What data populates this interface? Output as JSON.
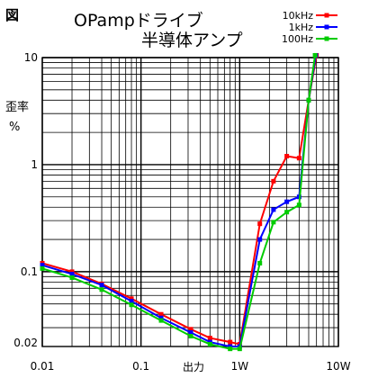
{
  "figure_label": "図",
  "title_line1": "OPampドライブ",
  "title_line2": "半導体アンプ",
  "chart_data": {
    "type": "line",
    "title": "OPampドライブ 半導体アンプ",
    "ylabel_line1": "歪率",
    "ylabel_line2": "%",
    "xlabel": "出力",
    "x_scale": "log",
    "y_scale": "log",
    "xlim": [
      0.01,
      10
    ],
    "ylim": [
      0.02,
      10
    ],
    "grid": true,
    "legend_position": "top-right",
    "x_ticks": [
      {
        "value": 0.01,
        "label": "0.01"
      },
      {
        "value": 0.1,
        "label": "0.1"
      },
      {
        "value": 1,
        "label": "1W"
      },
      {
        "value": 10,
        "label": "10W"
      }
    ],
    "y_ticks": [
      {
        "value": 0.02,
        "label": "0.02"
      },
      {
        "value": 0.1,
        "label": "0.1"
      },
      {
        "value": 1,
        "label": "1"
      },
      {
        "value": 10,
        "label": "10"
      }
    ],
    "series": [
      {
        "name": "10kHz",
        "color": "#ff0000",
        "points": [
          [
            0.01,
            0.12
          ],
          [
            0.02,
            0.1
          ],
          [
            0.04,
            0.077
          ],
          [
            0.08,
            0.056
          ],
          [
            0.16,
            0.04
          ],
          [
            0.32,
            0.029
          ],
          [
            0.5,
            0.024
          ],
          [
            0.8,
            0.022
          ],
          [
            1.0,
            0.021
          ],
          [
            1.6,
            0.28
          ],
          [
            2.2,
            0.7
          ],
          [
            3.0,
            1.2
          ],
          [
            4.0,
            1.15
          ],
          [
            5.0,
            4.0
          ],
          [
            6.0,
            10.5
          ]
        ]
      },
      {
        "name": "1kHz",
        "color": "#0000ff",
        "points": [
          [
            0.01,
            0.115
          ],
          [
            0.02,
            0.095
          ],
          [
            0.04,
            0.075
          ],
          [
            0.08,
            0.053
          ],
          [
            0.16,
            0.037
          ],
          [
            0.32,
            0.027
          ],
          [
            0.5,
            0.022
          ],
          [
            0.8,
            0.02
          ],
          [
            1.0,
            0.02
          ],
          [
            1.6,
            0.2
          ],
          [
            2.2,
            0.38
          ],
          [
            3.0,
            0.45
          ],
          [
            4.0,
            0.5
          ],
          [
            5.0,
            4.0
          ],
          [
            5.9,
            10.5
          ]
        ]
      },
      {
        "name": "100Hz",
        "color": "#00cc00",
        "points": [
          [
            0.01,
            0.107
          ],
          [
            0.02,
            0.088
          ],
          [
            0.04,
            0.068
          ],
          [
            0.08,
            0.049
          ],
          [
            0.16,
            0.035
          ],
          [
            0.32,
            0.025
          ],
          [
            0.5,
            0.021
          ],
          [
            0.8,
            0.019
          ],
          [
            1.0,
            0.019
          ],
          [
            1.6,
            0.12
          ],
          [
            2.2,
            0.29
          ],
          [
            3.0,
            0.36
          ],
          [
            4.0,
            0.42
          ],
          [
            5.0,
            4.0
          ],
          [
            5.8,
            10.5
          ]
        ]
      }
    ]
  }
}
